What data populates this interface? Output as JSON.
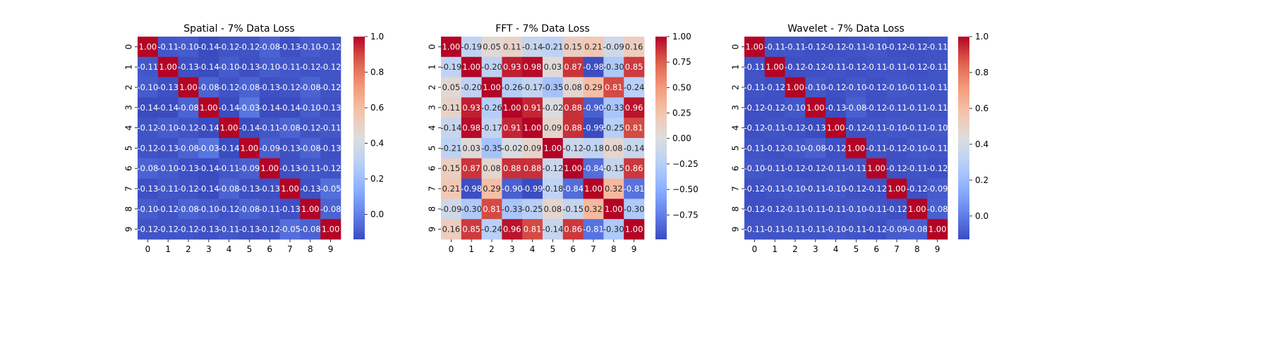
{
  "chart_data": [
    {
      "type": "heatmap",
      "title": "Spatial - 7% Data Loss",
      "xlabels": [
        "0",
        "1",
        "2",
        "3",
        "4",
        "5",
        "6",
        "7",
        "8",
        "9"
      ],
      "ylabels": [
        "0",
        "1",
        "2",
        "3",
        "4",
        "5",
        "6",
        "7",
        "8",
        "9"
      ],
      "colormap": "coolwarm",
      "vmin": -0.14,
      "vmax": 1.0,
      "colorbar_ticks": [
        0.0,
        0.2,
        0.4,
        0.6,
        0.8,
        1.0
      ],
      "colorbar_tick_labels": [
        "0.0",
        "0.2",
        "0.4",
        "0.6",
        "0.8",
        "1.0"
      ],
      "values": [
        [
          1.0,
          -0.11,
          -0.1,
          -0.14,
          -0.12,
          -0.12,
          -0.08,
          -0.13,
          -0.1,
          -0.12
        ],
        [
          -0.11,
          1.0,
          -0.13,
          -0.14,
          -0.1,
          -0.13,
          -0.1,
          -0.11,
          -0.12,
          -0.12
        ],
        [
          -0.1,
          -0.13,
          1.0,
          -0.08,
          -0.12,
          -0.08,
          -0.13,
          -0.12,
          -0.08,
          -0.12
        ],
        [
          -0.14,
          -0.14,
          -0.08,
          1.0,
          -0.14,
          -0.03,
          -0.14,
          -0.14,
          -0.1,
          -0.13
        ],
        [
          -0.12,
          -0.1,
          -0.12,
          -0.14,
          1.0,
          -0.14,
          -0.11,
          -0.08,
          -0.12,
          -0.11
        ],
        [
          -0.12,
          -0.13,
          -0.08,
          -0.03,
          -0.14,
          1.0,
          -0.09,
          -0.13,
          -0.08,
          -0.13
        ],
        [
          -0.08,
          -0.1,
          -0.13,
          -0.14,
          -0.11,
          -0.09,
          1.0,
          -0.13,
          -0.11,
          -0.12
        ],
        [
          -0.13,
          -0.11,
          -0.12,
          -0.14,
          -0.08,
          -0.13,
          -0.13,
          1.0,
          -0.13,
          -0.05
        ],
        [
          -0.1,
          -0.12,
          -0.08,
          -0.1,
          -0.12,
          -0.08,
          -0.11,
          -0.13,
          1.0,
          -0.08
        ],
        [
          -0.12,
          -0.12,
          -0.12,
          -0.13,
          -0.11,
          -0.13,
          -0.12,
          -0.05,
          -0.08,
          1.0
        ]
      ]
    },
    {
      "type": "heatmap",
      "title": "FFT - 7% Data Loss",
      "xlabels": [
        "0",
        "1",
        "2",
        "3",
        "4",
        "5",
        "6",
        "7",
        "8",
        "9"
      ],
      "ylabels": [
        "0",
        "1",
        "2",
        "3",
        "4",
        "5",
        "6",
        "7",
        "8",
        "9"
      ],
      "colormap": "coolwarm",
      "vmin": -0.99,
      "vmax": 1.0,
      "colorbar_ticks": [
        -0.75,
        -0.5,
        -0.25,
        0.0,
        0.25,
        0.5,
        0.75,
        1.0
      ],
      "colorbar_tick_labels": [
        "−0.75",
        "−0.50",
        "−0.25",
        "0.00",
        "0.25",
        "0.50",
        "0.75",
        "1.00"
      ],
      "values": [
        [
          1.0,
          -0.19,
          0.05,
          0.11,
          -0.14,
          -0.21,
          0.15,
          0.21,
          -0.09,
          0.16
        ],
        [
          -0.19,
          1.0,
          -0.2,
          0.93,
          0.98,
          0.03,
          0.87,
          -0.98,
          -0.3,
          0.85
        ],
        [
          0.05,
          -0.2,
          1.0,
          -0.26,
          -0.17,
          -0.35,
          0.08,
          0.29,
          0.81,
          -0.24
        ],
        [
          0.11,
          0.93,
          -0.26,
          1.0,
          0.91,
          -0.02,
          0.88,
          -0.9,
          -0.33,
          0.96
        ],
        [
          -0.14,
          0.98,
          -0.17,
          0.91,
          1.0,
          0.09,
          0.88,
          -0.99,
          -0.25,
          0.81
        ],
        [
          -0.21,
          0.03,
          -0.35,
          -0.02,
          0.09,
          1.0,
          -0.12,
          -0.18,
          0.08,
          -0.14
        ],
        [
          0.15,
          0.87,
          0.08,
          0.88,
          0.88,
          -0.12,
          1.0,
          -0.84,
          -0.15,
          0.86
        ],
        [
          0.21,
          -0.98,
          0.29,
          -0.9,
          -0.99,
          -0.18,
          -0.84,
          1.0,
          0.32,
          -0.81
        ],
        [
          -0.09,
          -0.3,
          0.81,
          -0.33,
          -0.25,
          0.08,
          -0.15,
          0.32,
          1.0,
          -0.3
        ],
        [
          0.16,
          0.85,
          -0.24,
          0.96,
          0.81,
          -0.14,
          0.86,
          -0.81,
          -0.3,
          1.0
        ]
      ]
    },
    {
      "type": "heatmap",
      "title": "Wavelet - 7% Data Loss",
      "xlabels": [
        "0",
        "1",
        "2",
        "3",
        "4",
        "5",
        "6",
        "7",
        "8",
        "9"
      ],
      "ylabels": [
        "0",
        "1",
        "2",
        "3",
        "4",
        "5",
        "6",
        "7",
        "8",
        "9"
      ],
      "colormap": "coolwarm",
      "vmin": -0.13,
      "vmax": 1.0,
      "colorbar_ticks": [
        0.0,
        0.2,
        0.4,
        0.6,
        0.8,
        1.0
      ],
      "colorbar_tick_labels": [
        "0.0",
        "0.2",
        "0.4",
        "0.6",
        "0.8",
        "1.0"
      ],
      "values": [
        [
          1.0,
          -0.11,
          -0.11,
          -0.12,
          -0.12,
          -0.11,
          -0.1,
          -0.12,
          -0.12,
          -0.11
        ],
        [
          -0.11,
          1.0,
          -0.12,
          -0.12,
          -0.11,
          -0.12,
          -0.11,
          -0.11,
          -0.12,
          -0.11
        ],
        [
          -0.11,
          -0.12,
          1.0,
          -0.1,
          -0.12,
          -0.1,
          -0.12,
          -0.1,
          -0.11,
          -0.11
        ],
        [
          -0.12,
          -0.12,
          -0.1,
          1.0,
          -0.13,
          -0.08,
          -0.12,
          -0.11,
          -0.11,
          -0.11
        ],
        [
          -0.12,
          -0.11,
          -0.12,
          -0.13,
          1.0,
          -0.12,
          -0.11,
          -0.1,
          -0.11,
          -0.1
        ],
        [
          -0.11,
          -0.12,
          -0.1,
          -0.08,
          -0.12,
          1.0,
          -0.11,
          -0.12,
          -0.1,
          -0.11
        ],
        [
          -0.1,
          -0.11,
          -0.12,
          -0.12,
          -0.11,
          -0.11,
          1.0,
          -0.12,
          -0.11,
          -0.12
        ],
        [
          -0.12,
          -0.11,
          -0.1,
          -0.11,
          -0.1,
          -0.12,
          -0.12,
          1.0,
          -0.12,
          -0.09
        ],
        [
          -0.12,
          -0.12,
          -0.11,
          -0.11,
          -0.11,
          -0.1,
          -0.11,
          -0.12,
          1.0,
          -0.08
        ],
        [
          -0.11,
          -0.11,
          -0.11,
          -0.11,
          -0.1,
          -0.11,
          -0.12,
          -0.09,
          -0.08,
          1.0
        ]
      ]
    }
  ]
}
